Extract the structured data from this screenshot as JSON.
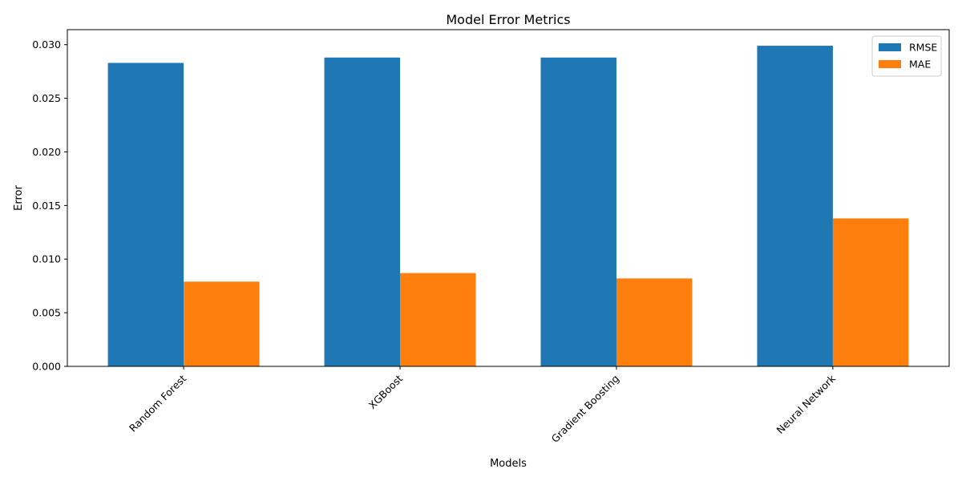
{
  "chart_data": {
    "type": "bar",
    "title": "Model Error Metrics",
    "xlabel": "Models",
    "ylabel": "Error",
    "categories": [
      "Random Forest",
      "XGBoost",
      "Gradient Boosting",
      "Neural Network"
    ],
    "series": [
      {
        "name": "RMSE",
        "values": [
          0.0283,
          0.0288,
          0.0288,
          0.0299
        ],
        "color": "#1f77b4"
      },
      {
        "name": "MAE",
        "values": [
          0.0079,
          0.0087,
          0.0082,
          0.0138
        ],
        "color": "#ff7f0e"
      }
    ],
    "ylim": [
      0,
      0.0314
    ],
    "yticks": [
      "0.000",
      "0.005",
      "0.010",
      "0.015",
      "0.020",
      "0.025",
      "0.030"
    ],
    "ytick_values": [
      0,
      0.005,
      0.01,
      0.015,
      0.02,
      0.025,
      0.03
    ],
    "grid": false,
    "legend_position": "top-right"
  }
}
